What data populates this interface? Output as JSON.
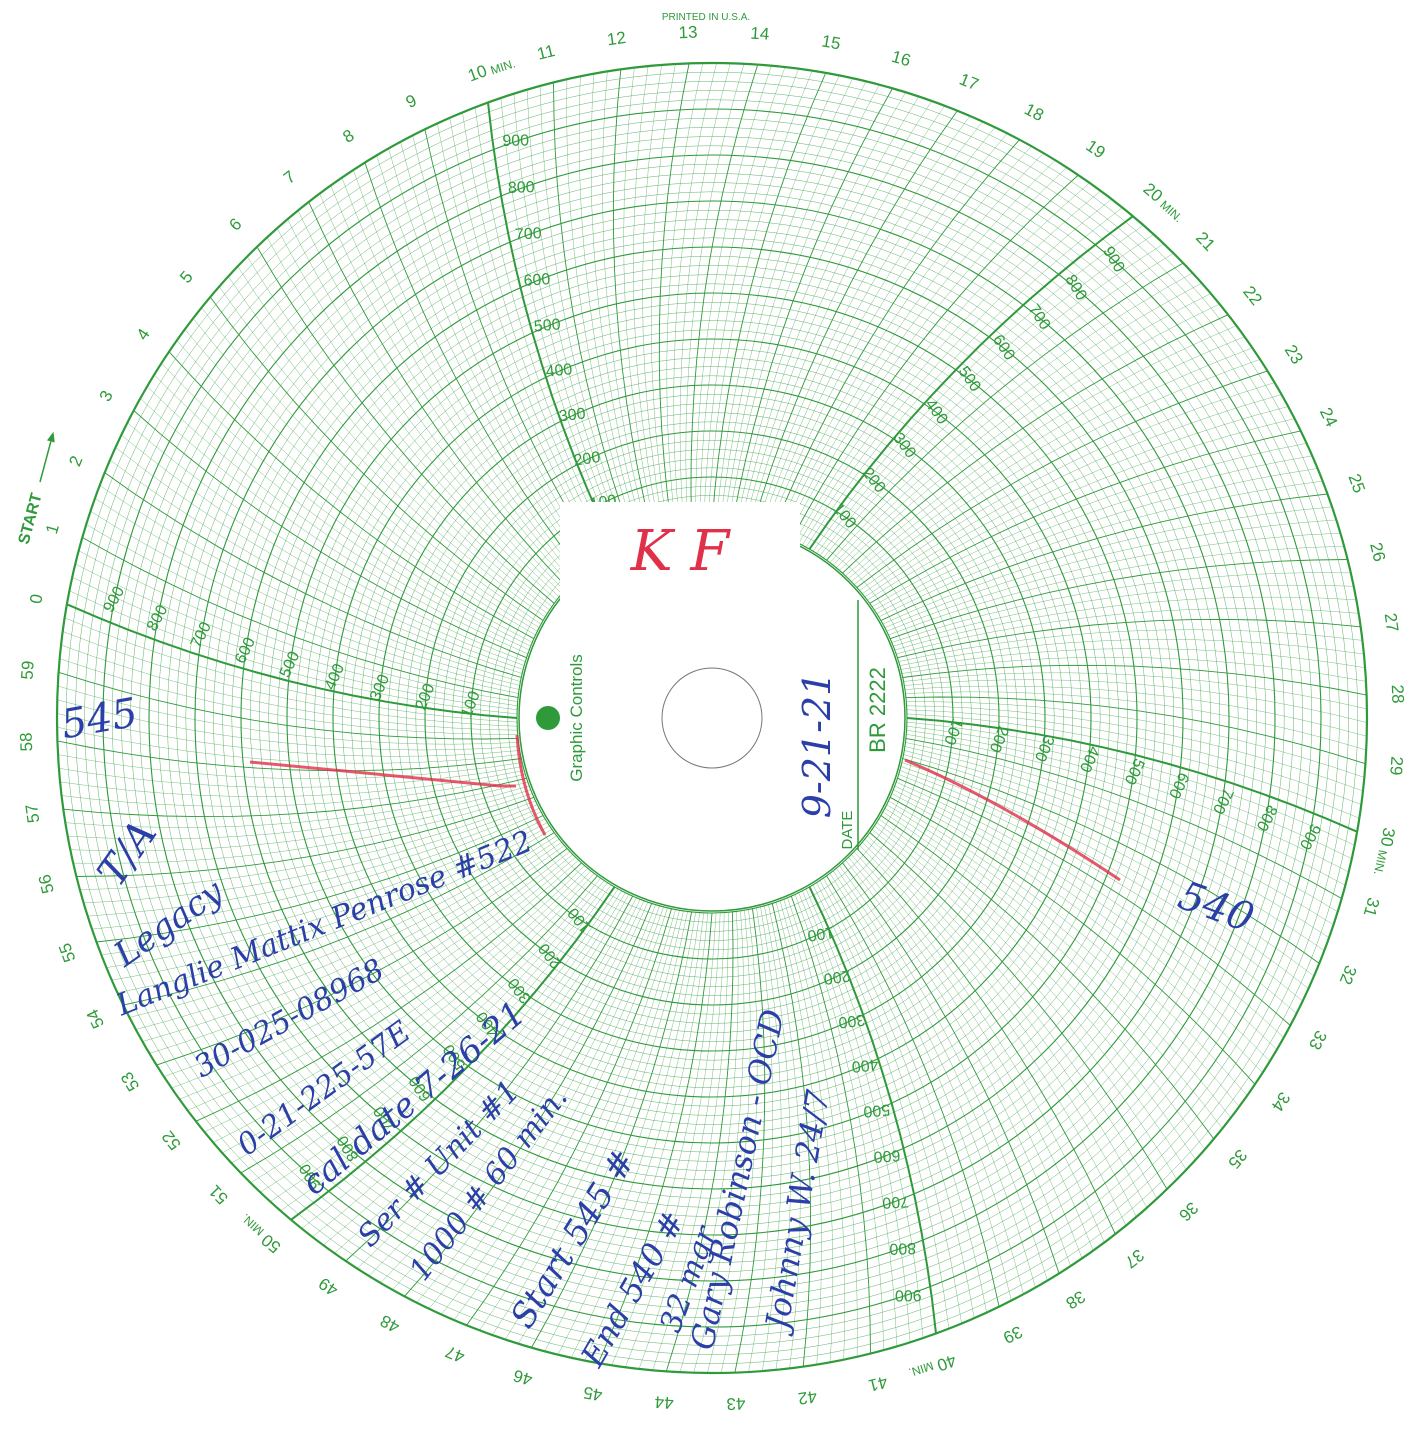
{
  "header": {
    "printed": "PRINTED IN U.S.A.",
    "start": "START"
  },
  "dial": {
    "minutes": [
      "0",
      "1",
      "2",
      "3",
      "4",
      "5",
      "6",
      "7",
      "8",
      "9",
      "10",
      "11",
      "12",
      "13",
      "14",
      "15",
      "16",
      "17",
      "18",
      "19",
      "20",
      "21",
      "22",
      "23",
      "24",
      "25",
      "26",
      "27",
      "28",
      "29",
      "30",
      "31",
      "32",
      "33",
      "34",
      "35",
      "36",
      "37",
      "38",
      "39",
      "40",
      "41",
      "42",
      "43",
      "44",
      "45",
      "46",
      "47",
      "48",
      "49",
      "50",
      "51",
      "52",
      "53",
      "54",
      "55",
      "56",
      "57",
      "58",
      "59"
    ],
    "min_unit": "MIN.",
    "scale": [
      "100",
      "200",
      "300",
      "400",
      "500",
      "600",
      "700",
      "800",
      "900"
    ]
  },
  "center": {
    "brand": "Graphic Controls",
    "date_label": "DATE",
    "chart_number": "BR 2222",
    "sticker": "K F",
    "date": "9-21-21"
  },
  "readings": {
    "start": "545",
    "end": "540"
  },
  "notes": [
    "T/A",
    "Legacy",
    "Langlie Mattix Penrose #522",
    "30-025-08968",
    "0-21-225-57E",
    "cal date 7-26-21",
    "Ser # Unit #1",
    "1000 # 60 min.",
    "Start 545 #",
    "End 540 #",
    "32 mgr",
    "Gary Robinson - OCD",
    "Johnny W. 24/7"
  ]
}
